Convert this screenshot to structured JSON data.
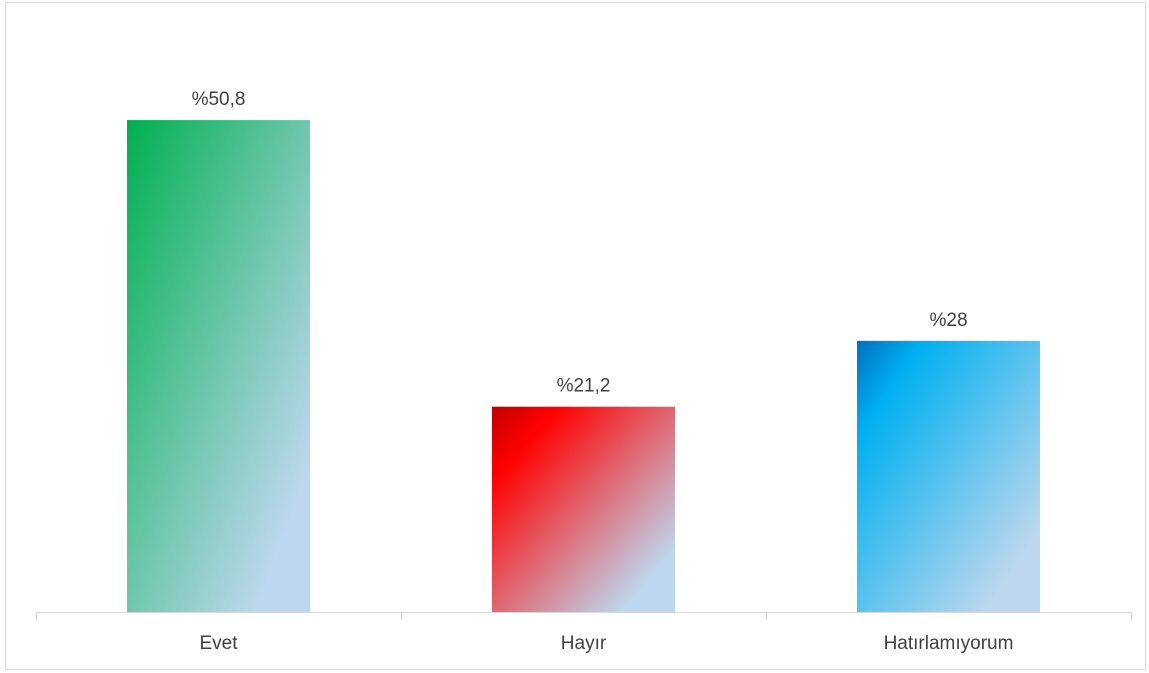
{
  "chart_data": {
    "type": "bar",
    "categories": [
      "Evet",
      "Hayır",
      "Hatırlamıyorum"
    ],
    "values": [
      50.8,
      21.2,
      28
    ],
    "data_labels": [
      "%50,8",
      "%21,2",
      "%28"
    ],
    "title": "",
    "xlabel": "",
    "ylabel": "",
    "ylim": [
      0,
      57
    ],
    "grid": false,
    "legend": "none",
    "gradients": [
      [
        "#00b050",
        "#bdd7ee"
      ],
      [
        "#c00000",
        "#ff0000",
        "#bdd7ee"
      ],
      [
        "#0070c0",
        "#00b0f0",
        "#bdd7ee"
      ]
    ],
    "axis_color": "#d9d9d9",
    "label_color": "#404040"
  }
}
